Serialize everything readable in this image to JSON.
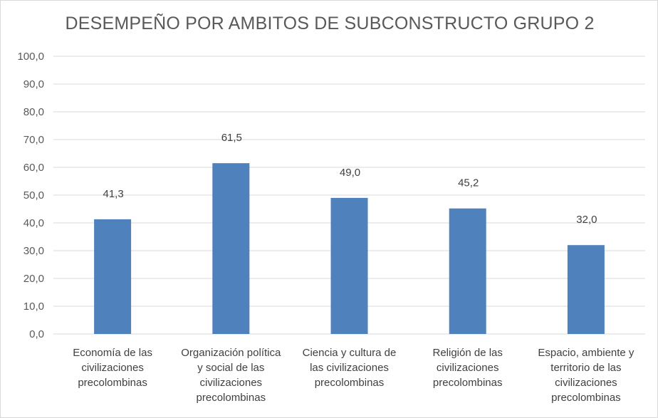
{
  "chart_data": {
    "type": "bar",
    "title": "DESEMPEÑO POR AMBITOS DE SUBCONSTRUCTO GRUPO 2",
    "xlabel": "",
    "ylabel": "",
    "ylim": [
      0,
      100
    ],
    "y_ticks": [
      "0,0",
      "10,0",
      "20,0",
      "30,0",
      "40,0",
      "50,0",
      "60,0",
      "70,0",
      "80,0",
      "90,0",
      "100,0"
    ],
    "grid": true,
    "legend": "none",
    "categories": [
      [
        "Economía de las",
        "civilizaciones",
        "precolombinas"
      ],
      [
        "Organización política",
        "y social de las",
        "civilizaciones",
        "precolombinas"
      ],
      [
        "Ciencia y cultura de",
        "las civilizaciones",
        "precolombinas"
      ],
      [
        "Religión de las",
        "civilizaciones",
        "precolombinas"
      ],
      [
        "Espacio, ambiente y",
        "territorio de las",
        "civilizaciones",
        "precolombinas"
      ]
    ],
    "values": [
      41.3,
      61.5,
      49.0,
      45.2,
      32.0
    ],
    "data_labels": [
      "41,3",
      "61,5",
      "49,0",
      "45,2",
      "32,0"
    ],
    "bar_color": "#4f81bd",
    "grid_color": "#d9d9d9",
    "axis_color": "#d9d9d9"
  }
}
